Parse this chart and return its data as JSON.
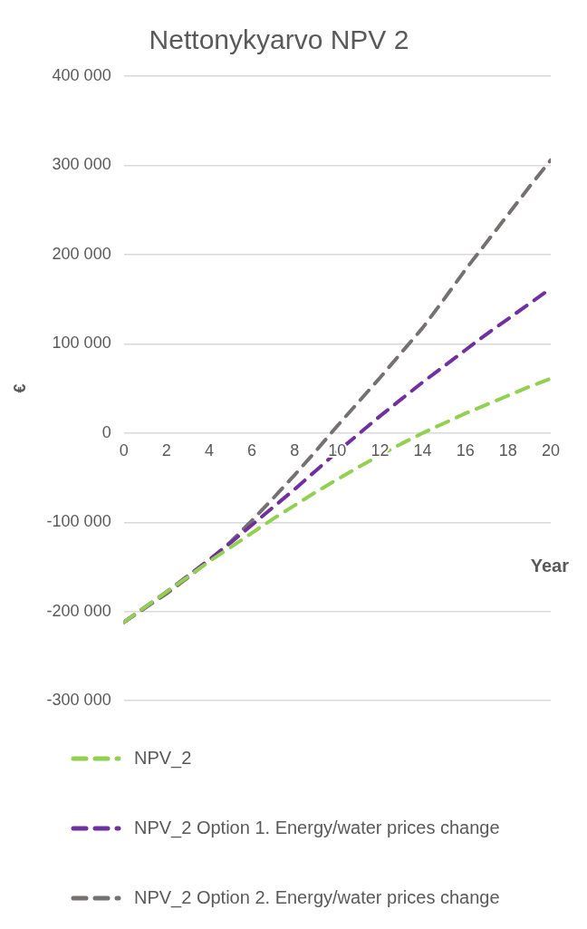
{
  "chart_data": {
    "type": "line",
    "title": "Nettonykyarvo NPV 2",
    "xlabel": "Year",
    "ylabel": "€",
    "x": [
      0,
      1,
      2,
      3,
      4,
      5,
      6,
      7,
      8,
      9,
      10,
      11,
      12,
      13,
      14,
      15,
      16,
      17,
      18,
      19,
      20
    ],
    "xlim": [
      0,
      20
    ],
    "xticks": [
      0,
      2,
      4,
      6,
      8,
      10,
      12,
      14,
      16,
      18,
      20
    ],
    "ylim": [
      -300000,
      400000
    ],
    "yticks": [
      {
        "value": -300000,
        "label": "-300 000"
      },
      {
        "value": -200000,
        "label": "-200 000"
      },
      {
        "value": -100000,
        "label": "-100 000"
      },
      {
        "value": 0,
        "label": "0"
      },
      {
        "value": 100000,
        "label": "100 000"
      },
      {
        "value": 200000,
        "label": "200 000"
      },
      {
        "value": 300000,
        "label": "300 000"
      },
      {
        "value": 400000,
        "label": "400 000"
      }
    ],
    "grid": "y",
    "legend": "bottom",
    "line_style": "dashed",
    "marker": "none",
    "series": [
      {
        "name": "NPV_2",
        "color": "#92d050",
        "values": [
          -212000,
          -195000,
          -178000,
          -161000,
          -144000,
          -128000,
          -112000,
          -96000,
          -81000,
          -66000,
          -52000,
          -38000,
          -25000,
          -12000,
          0,
          11000,
          22000,
          32000,
          42000,
          52000,
          61000
        ]
      },
      {
        "name": "NPV_2 Option 1. Energy/water prices change",
        "color": "#7030a0",
        "values": [
          -212000,
          -195000,
          -178000,
          -160000,
          -142000,
          -123000,
          -103000,
          -83000,
          -63000,
          -42000,
          -21000,
          -1000,
          19000,
          38000,
          57000,
          75000,
          93000,
          111000,
          128000,
          145000,
          162000
        ]
      },
      {
        "name": "NPV_2 Option 2. Energy/water prices change",
        "color": "#767171",
        "values": [
          -212000,
          -196000,
          -180000,
          -162000,
          -143000,
          -122000,
          -98000,
          -73000,
          -47000,
          -20000,
          8000,
          35000,
          62000,
          90000,
          118000,
          150000,
          183000,
          214000,
          245000,
          276000,
          306000
        ]
      }
    ]
  }
}
